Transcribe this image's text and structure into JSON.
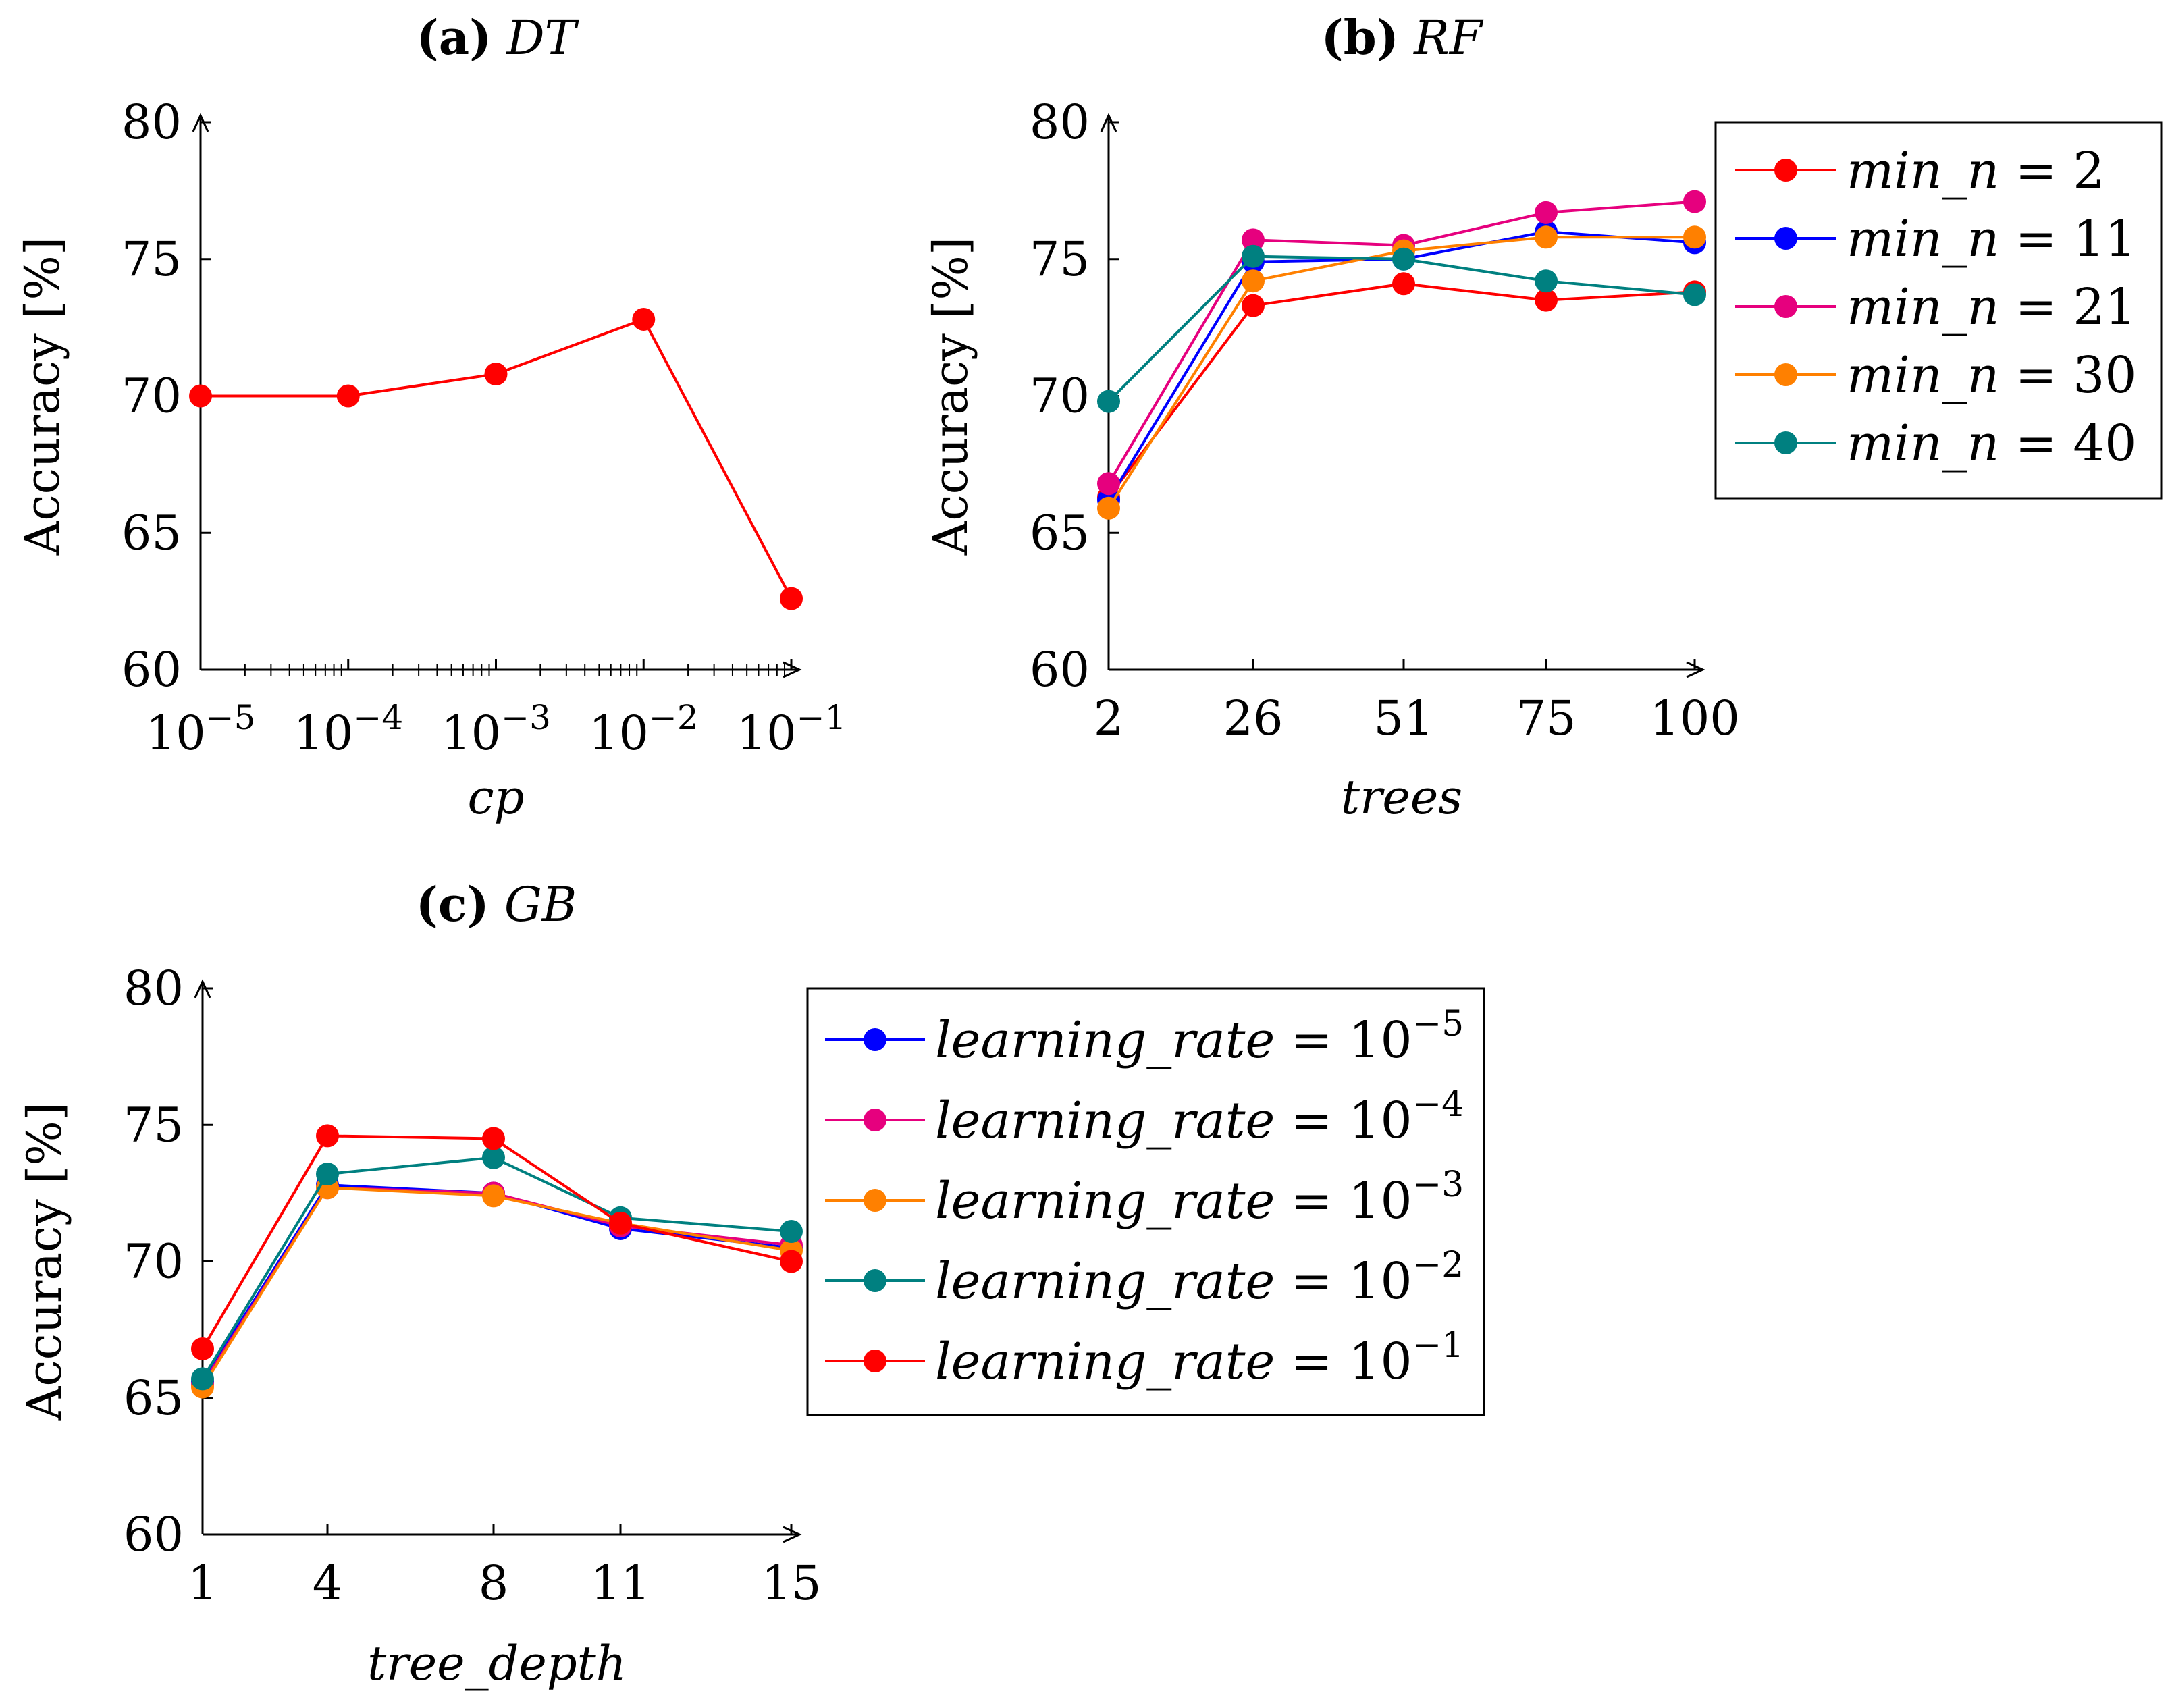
{
  "colors": {
    "red": "#ff0000",
    "blue": "#0000ff",
    "magenta": "#e6007e",
    "orange": "#ff8000",
    "teal": "#008080",
    "axis": "#000000"
  },
  "chart_data": [
    {
      "id": "dt",
      "type": "line",
      "title_prefix": "(a)",
      "title_name": "DT",
      "xlabel": "cp",
      "ylabel": "Accuracy [%]",
      "xscale": "log",
      "x": [
        1e-05,
        0.0001,
        0.001,
        0.01,
        0.1
      ],
      "xtick_labels": [
        {
          "base": "10",
          "exp": "−5"
        },
        {
          "base": "10",
          "exp": "−4"
        },
        {
          "base": "10",
          "exp": "−3"
        },
        {
          "base": "10",
          "exp": "−2"
        },
        {
          "base": "10",
          "exp": "−1"
        }
      ],
      "ylim": [
        60,
        80
      ],
      "yticks": [
        "60",
        "65",
        "70",
        "75",
        "80"
      ],
      "series": [
        {
          "name": "DT",
          "color": "red",
          "values": [
            70.0,
            70.0,
            70.8,
            72.8,
            62.6
          ]
        }
      ],
      "legend": null
    },
    {
      "id": "rf",
      "type": "line",
      "title_prefix": "(b)",
      "title_name": "RF",
      "xlabel": "trees",
      "ylabel": "Accuracy [%]",
      "xscale": "linear",
      "x": [
        2,
        26,
        51,
        75,
        100
      ],
      "xtick_labels": [
        "2",
        "26",
        "51",
        "75",
        "100"
      ],
      "ylim": [
        60,
        80
      ],
      "yticks": [
        "60",
        "65",
        "70",
        "75",
        "80"
      ],
      "legend_prefix": "min_n = ",
      "series": [
        {
          "name": "min_n = 2",
          "label_value": "2",
          "color": "red",
          "values": [
            66.3,
            73.3,
            74.1,
            73.5,
            73.8
          ]
        },
        {
          "name": "min_n = 11",
          "label_value": "11",
          "color": "blue",
          "values": [
            66.2,
            74.9,
            75.0,
            76.0,
            75.6
          ]
        },
        {
          "name": "min_n = 21",
          "label_value": "21",
          "color": "magenta",
          "values": [
            66.8,
            75.7,
            75.5,
            76.7,
            77.1
          ]
        },
        {
          "name": "min_n = 30",
          "label_value": "30",
          "color": "orange",
          "values": [
            65.9,
            74.2,
            75.3,
            75.8,
            75.8
          ]
        },
        {
          "name": "min_n = 40",
          "label_value": "40",
          "color": "teal",
          "values": [
            69.8,
            75.1,
            75.0,
            74.2,
            73.7
          ]
        }
      ],
      "legend": "right"
    },
    {
      "id": "gb",
      "type": "line",
      "title_prefix": "(c)",
      "title_name": "GB",
      "xlabel": "tree_depth",
      "ylabel": "Accuracy [%]",
      "xscale": "linear",
      "x": [
        1,
        4,
        8,
        11,
        15
      ],
      "xtick_labels": [
        "1",
        "4",
        "8",
        "11",
        "15"
      ],
      "ylim": [
        60,
        80
      ],
      "yticks": [
        "60",
        "65",
        "70",
        "75",
        "80"
      ],
      "legend_prefix": "learning_rate = ",
      "series": [
        {
          "name": "learning_rate = 10^-5",
          "label_base": "10",
          "label_exp": "−5",
          "color": "blue",
          "values": [
            65.6,
            72.8,
            72.5,
            71.2,
            70.5
          ]
        },
        {
          "name": "learning_rate = 10^-4",
          "label_base": "10",
          "label_exp": "−4",
          "color": "magenta",
          "values": [
            65.5,
            72.7,
            72.5,
            71.3,
            70.6
          ]
        },
        {
          "name": "learning_rate = 10^-3",
          "label_base": "10",
          "label_exp": "−3",
          "color": "orange",
          "values": [
            65.4,
            72.7,
            72.4,
            71.4,
            70.4
          ]
        },
        {
          "name": "learning_rate = 10^-2",
          "label_base": "10",
          "label_exp": "−2",
          "color": "teal",
          "values": [
            65.7,
            73.2,
            73.8,
            71.6,
            71.1
          ]
        },
        {
          "name": "learning_rate = 10^-1",
          "label_base": "10",
          "label_exp": "−1",
          "color": "red",
          "values": [
            66.8,
            74.6,
            74.5,
            71.4,
            70.0
          ]
        }
      ],
      "legend": "right"
    }
  ]
}
